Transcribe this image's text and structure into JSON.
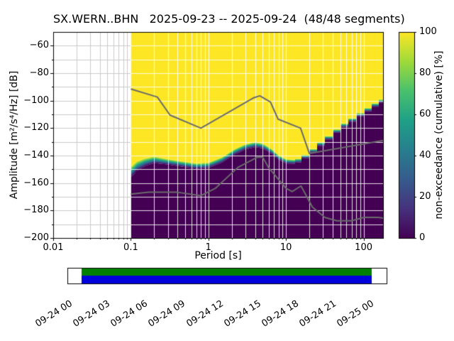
{
  "title": "SX.WERN..BHN   2025-09-23 -- 2025-09-24  (48/48 segments)",
  "chart_data": {
    "type": "heatmap",
    "subtype": "ppsd-cumulative-histogram",
    "station": "SX.WERN..BHN",
    "date_range": "2025-09-23 -- 2025-09-24",
    "segments": "48/48",
    "xlabel": "Period [s]",
    "ylabel": "Amplitude [m²/s⁴/Hz] [dB]",
    "x_scale": "log",
    "xlim": [
      0.01,
      178
    ],
    "ylim": [
      -200,
      -50
    ],
    "grid": true,
    "x_major_ticks": [
      0.01,
      0.1,
      1,
      10,
      100
    ],
    "x_tick_labels": [
      "0.01",
      "0.1",
      "1",
      "10",
      "100"
    ],
    "y_major_ticks": [
      -60,
      -80,
      -100,
      -120,
      -140,
      -160,
      -180,
      -200
    ],
    "y_tick_labels": [
      "−60",
      "−80",
      "−100",
      "−120",
      "−140",
      "−160",
      "−180",
      "−200"
    ],
    "colormap": "viridis",
    "colorbar": {
      "label": "non-exceedance (cumulative) [%]",
      "ticks": [
        0,
        20,
        40,
        60,
        80,
        100
      ],
      "stops": [
        "#440154",
        "#46327e",
        "#365c8d",
        "#277f8e",
        "#1fa187",
        "#4ac16d",
        "#a0da39",
        "#fde725"
      ]
    },
    "mesh": {
      "period_min": 0.1,
      "period_max": 178,
      "boundary_db": [
        [
          0.1,
          -148
        ],
        [
          0.12,
          -144
        ],
        [
          0.15,
          -142
        ],
        [
          0.2,
          -140.5
        ],
        [
          0.3,
          -142.5
        ],
        [
          0.45,
          -144
        ],
        [
          0.7,
          -145.5
        ],
        [
          1.0,
          -145
        ],
        [
          1.5,
          -141
        ],
        [
          2.2,
          -135
        ],
        [
          3.0,
          -131.5
        ],
        [
          4.0,
          -130
        ],
        [
          5.0,
          -131
        ],
        [
          6.5,
          -135
        ],
        [
          8.0,
          -139.5
        ],
        [
          10,
          -142.5
        ],
        [
          13,
          -143
        ],
        [
          16,
          -141
        ],
        [
          20,
          -137.5
        ],
        [
          26,
          -132
        ],
        [
          35,
          -126
        ],
        [
          50,
          -118.5
        ],
        [
          70,
          -113
        ],
        [
          100,
          -107
        ],
        [
          140,
          -102
        ],
        [
          178,
          -99
        ]
      ],
      "spread_db": [
        [
          0.1,
          8
        ],
        [
          0.16,
          5.5
        ],
        [
          0.3,
          4
        ],
        [
          3,
          4
        ],
        [
          8,
          3.5
        ],
        [
          12,
          3
        ],
        [
          20,
          2.5
        ],
        [
          178,
          2.5
        ]
      ]
    },
    "noise_models": {
      "color": "#6b6b6b",
      "nhnm": [
        [
          0.1,
          -91.5
        ],
        [
          0.22,
          -97.4
        ],
        [
          0.32,
          -110.5
        ],
        [
          0.8,
          -120.0
        ],
        [
          3.8,
          -98.0
        ],
        [
          4.6,
          -96.5
        ],
        [
          6.3,
          -101.0
        ],
        [
          7.9,
          -113.5
        ],
        [
          15.4,
          -120.0
        ],
        [
          20.0,
          -138.5
        ],
        [
          354.8,
          -126.0
        ]
      ],
      "nlnm": [
        [
          0.1,
          -168.0
        ],
        [
          0.17,
          -166.7
        ],
        [
          0.4,
          -166.7
        ],
        [
          0.8,
          -169.2
        ],
        [
          1.24,
          -163.7
        ],
        [
          2.4,
          -148.6
        ],
        [
          4.3,
          -141.1
        ],
        [
          5.0,
          -141.1
        ],
        [
          6.0,
          -149.0
        ],
        [
          10.0,
          -163.8
        ],
        [
          12.0,
          -166.2
        ],
        [
          15.6,
          -162.1
        ],
        [
          21.9,
          -177.5
        ],
        [
          31.6,
          -185.0
        ],
        [
          45.0,
          -187.5
        ],
        [
          70.0,
          -187.5
        ],
        [
          101.0,
          -185.0
        ],
        [
          154.0,
          -185.0
        ],
        [
          328.0,
          -187.5
        ]
      ]
    },
    "timeline": {
      "tick_labels": [
        "09-24 00",
        "09-24 03",
        "09-24 06",
        "09-24 09",
        "09-24 12",
        "09-24 15",
        "09-24 18",
        "09-24 21",
        "09-25 00"
      ],
      "coverage_colors": [
        "#008000",
        "#0000dd"
      ]
    }
  }
}
